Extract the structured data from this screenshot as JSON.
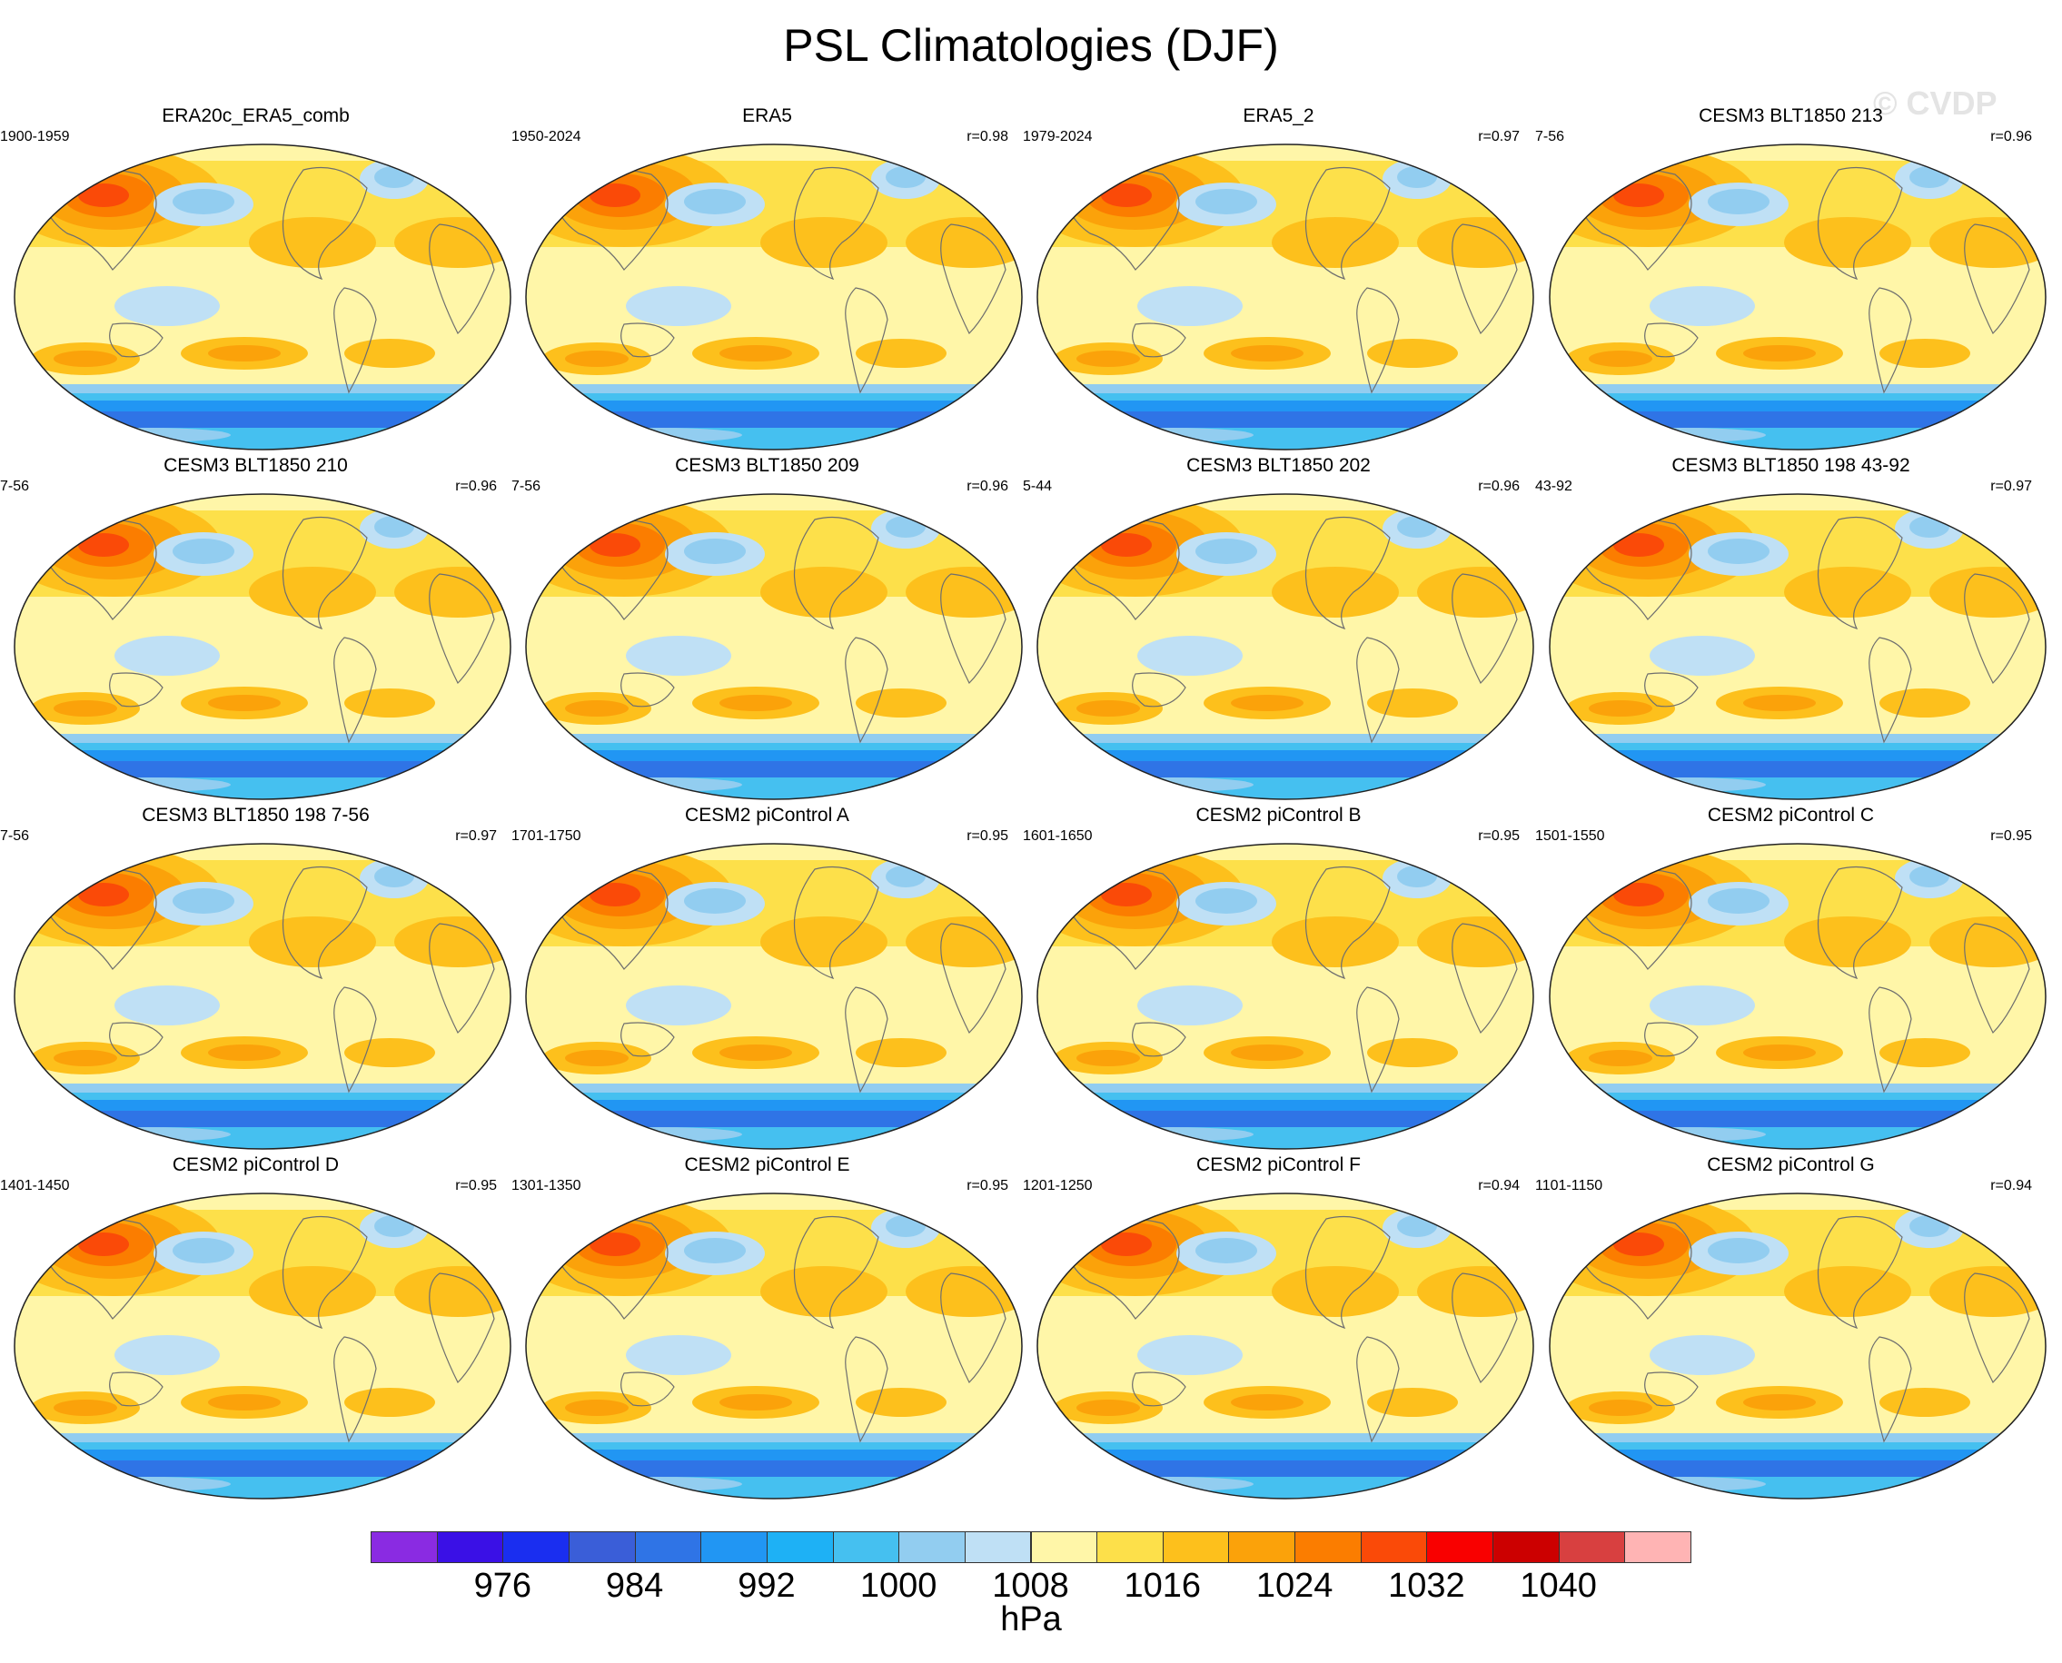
{
  "title": "PSL Climatologies (DJF)",
  "watermark": "© CVDP",
  "panels": [
    {
      "title": "ERA20c_ERA5_comb",
      "years": "1900-1959",
      "r": ""
    },
    {
      "title": "ERA5",
      "years": "1950-2024",
      "r": "r=0.98"
    },
    {
      "title": "ERA5_2",
      "years": "1979-2024",
      "r": "r=0.97"
    },
    {
      "title": "CESM3 BLT1850 213",
      "years": "7-56",
      "r": "r=0.96"
    },
    {
      "title": "CESM3 BLT1850 210",
      "years": "7-56",
      "r": "r=0.96"
    },
    {
      "title": "CESM3 BLT1850 209",
      "years": "7-56",
      "r": "r=0.96"
    },
    {
      "title": "CESM3 BLT1850 202",
      "years": "5-44",
      "r": "r=0.96"
    },
    {
      "title": "CESM3 BLT1850 198 43-92",
      "years": "43-92",
      "r": "r=0.97"
    },
    {
      "title": "CESM3 BLT1850 198 7-56",
      "years": "7-56",
      "r": "r=0.97"
    },
    {
      "title": "CESM2 piControl A",
      "years": "1701-1750",
      "r": "r=0.95"
    },
    {
      "title": "CESM2 piControl B",
      "years": "1601-1650",
      "r": "r=0.95"
    },
    {
      "title": "CESM2 piControl C",
      "years": "1501-1550",
      "r": "r=0.95"
    },
    {
      "title": "CESM2 piControl D",
      "years": "1401-1450",
      "r": "r=0.95"
    },
    {
      "title": "CESM2 piControl E",
      "years": "1301-1350",
      "r": "r=0.95"
    },
    {
      "title": "CESM2 piControl F",
      "years": "1201-1250",
      "r": "r=0.94"
    },
    {
      "title": "CESM2 piControl G",
      "years": "1101-1150",
      "r": "r=0.94"
    }
  ],
  "colorbar": {
    "units": "hPa",
    "colors": [
      "#8a2be2",
      "#3a10e6",
      "#1a2ef0",
      "#3a5ed8",
      "#2f74e6",
      "#2196f3",
      "#1eb1f5",
      "#45c0f0",
      "#92cdf0",
      "#bfe0f5",
      "#fff6a8",
      "#fde04a",
      "#fdc01c",
      "#fba20a",
      "#fb7d00",
      "#fa4a08",
      "#f90000",
      "#cc0000",
      "#d84040",
      "#ffb4b4"
    ],
    "tick_labels": [
      "976",
      "984",
      "992",
      "1000",
      "1008",
      "1016",
      "1024",
      "1032",
      "1040"
    ],
    "tick_after_swatch": [
      2,
      4,
      6,
      8,
      10,
      12,
      14,
      16,
      18
    ]
  }
}
